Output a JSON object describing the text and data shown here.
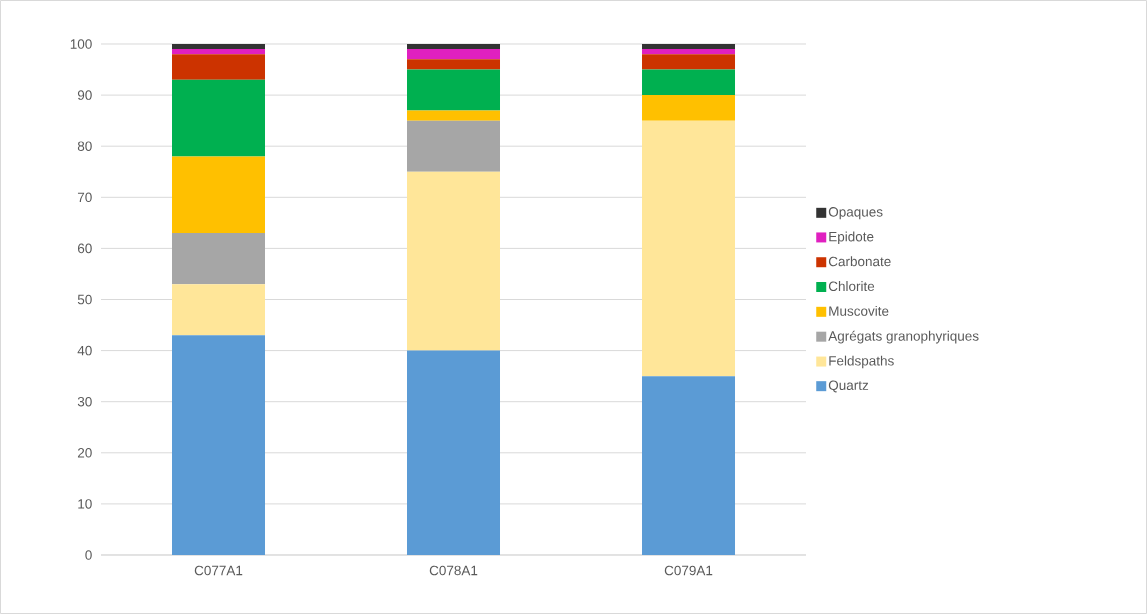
{
  "chart_data": {
    "type": "bar",
    "stacked": true,
    "categories": [
      "C077A1",
      "C078A1",
      "C079A1"
    ],
    "series": [
      {
        "name": "Quartz",
        "color": "#5b9bd5",
        "values": [
          43,
          40,
          35
        ]
      },
      {
        "name": "Feldspaths",
        "color": "#ffe699",
        "values": [
          10,
          35,
          50
        ]
      },
      {
        "name": "Agrégats granophyriques",
        "color": "#a6a6a6",
        "values": [
          10,
          10,
          0
        ]
      },
      {
        "name": "Muscovite",
        "color": "#ffc000",
        "values": [
          15,
          2,
          5
        ]
      },
      {
        "name": "Chlorite",
        "color": "#00b050",
        "values": [
          15,
          8,
          5
        ]
      },
      {
        "name": "Carbonate",
        "color": "#cc3300",
        "values": [
          5,
          2,
          3
        ]
      },
      {
        "name": "Epidote",
        "color": "#e020c0",
        "values": [
          1,
          2,
          1
        ]
      },
      {
        "name": "Opaques",
        "color": "#333333",
        "values": [
          1,
          1,
          1
        ]
      }
    ],
    "ylim": [
      0,
      100
    ],
    "yticks": [
      0,
      10,
      20,
      30,
      40,
      50,
      60,
      70,
      80,
      90,
      100
    ],
    "grid": "y",
    "legend": "right"
  }
}
